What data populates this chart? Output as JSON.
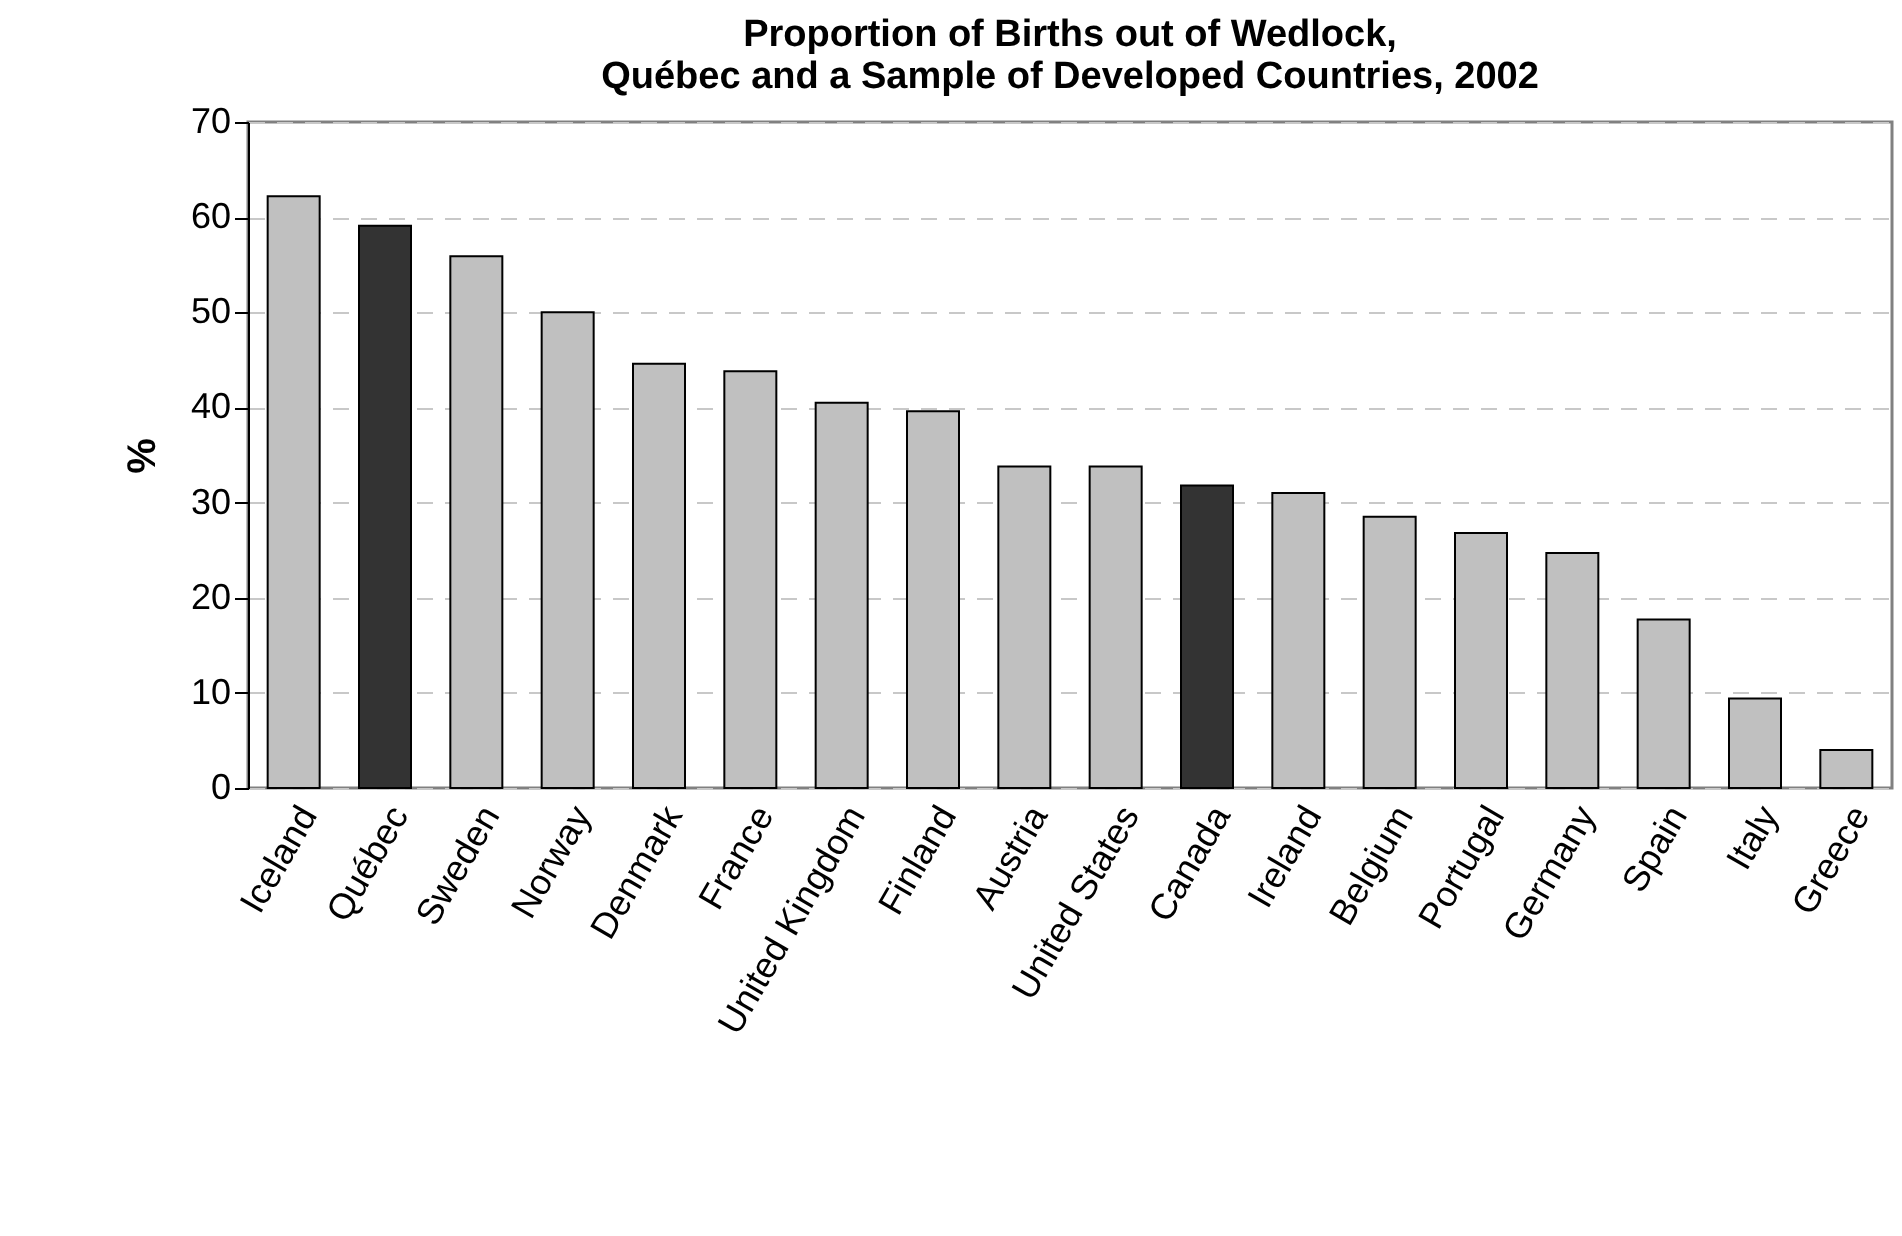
{
  "chart_data": {
    "type": "bar",
    "title": [
      "Proportion of Births out of Wedlock,",
      "Québec and a Sample of Developed Countries, 2002"
    ],
    "ylabel": "%",
    "categories": [
      "Iceland",
      "Québec",
      "Sweden",
      "Norway",
      "Denmark",
      "France",
      "United Kingdom",
      "Finland",
      "Austria",
      "United States",
      "Canada",
      "Ireland",
      "Belgium",
      "Portugal",
      "Germany",
      "Spain",
      "Italy",
      "Greece"
    ],
    "values": [
      62.2,
      59.1,
      55.9,
      50.0,
      44.6,
      43.8,
      40.5,
      39.6,
      33.8,
      33.8,
      31.8,
      31.0,
      28.5,
      26.8,
      24.7,
      17.7,
      9.4,
      4.0
    ],
    "colors": [
      "#c0c0c0",
      "#333333",
      "#c0c0c0",
      "#c0c0c0",
      "#c0c0c0",
      "#c0c0c0",
      "#c0c0c0",
      "#c0c0c0",
      "#c0c0c0",
      "#c0c0c0",
      "#333333",
      "#c0c0c0",
      "#c0c0c0",
      "#c0c0c0",
      "#c0c0c0",
      "#c0c0c0",
      "#c0c0c0",
      "#c0c0c0"
    ],
    "ylim": [
      0,
      70
    ],
    "yticks": [
      0,
      10,
      20,
      30,
      40,
      50,
      60,
      70
    ],
    "grid": "y"
  }
}
